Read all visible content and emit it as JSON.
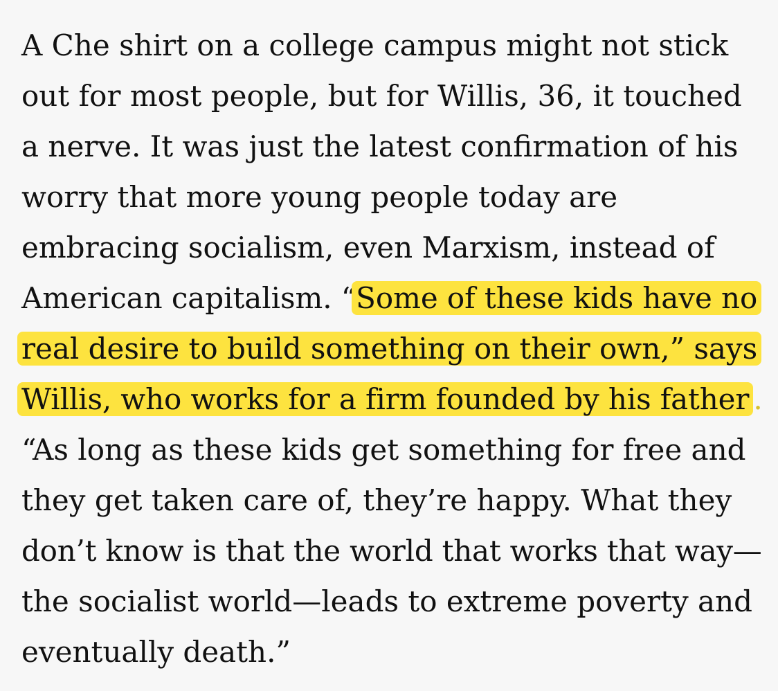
{
  "paragraph": {
    "lines": [
      "A Che shirt on a college campus might not stick",
      "out for most people, but for Willis, 36, it touched",
      "a nerve. It was just the latest confirmation of his",
      "worry that more young people today are",
      "embracing socialism, even Marxism, instead of"
    ],
    "line6_plain": "American capitalism. “",
    "line6_highlight": "Some of these kids have no",
    "line7_highlight": "real desire to build something on their own,” says",
    "line8_highlight": "Willis, who works for a firm founded by his father",
    "line8_trailing": ".",
    "after_lines": [
      "“As long as these kids get something for free and",
      "they get taken care of, they’re happy. What they",
      "don’t know is that the world that works that way—",
      "the socialist world—leads to extreme poverty and",
      "eventually death.”"
    ]
  },
  "colors": {
    "background": "#f7f7f7",
    "text": "#111111",
    "highlight": "#fde33f"
  }
}
